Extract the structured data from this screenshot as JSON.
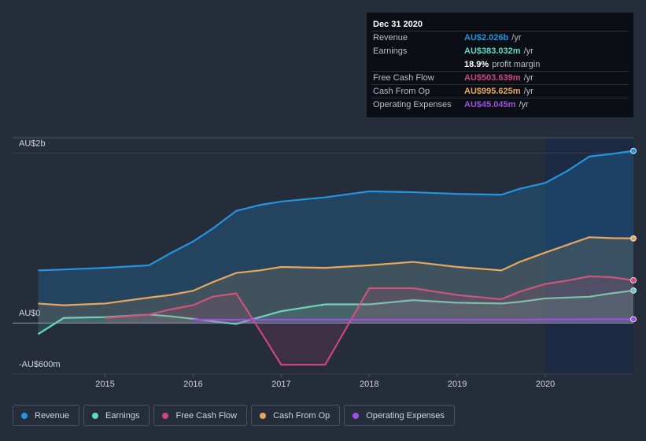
{
  "chart_data": {
    "type": "line",
    "x": [
      2014.24,
      2014.53,
      2015,
      2015.5,
      2015.74,
      2016,
      2016.22,
      2016.49,
      2016.76,
      2017,
      2017.5,
      2018,
      2018.5,
      2019,
      2019.5,
      2019.71,
      2020,
      2020.25,
      2020.5,
      2020.75,
      2021.0
    ],
    "series": [
      {
        "name": "Revenue",
        "color": "#2394df",
        "values": [
          0.62,
          0.63,
          0.65,
          0.68,
          0.82,
          0.96,
          1.11,
          1.32,
          1.39,
          1.43,
          1.48,
          1.55,
          1.54,
          1.52,
          1.51,
          1.58,
          1.65,
          1.79,
          1.96,
          1.99,
          2.026
        ]
      },
      {
        "name": "Earnings",
        "color": "#5fd9c3",
        "values": [
          -0.13,
          0.06,
          0.07,
          0.1,
          0.08,
          0.05,
          0.02,
          -0.01,
          0.07,
          0.14,
          0.22,
          0.22,
          0.27,
          0.24,
          0.23,
          0.25,
          0.29,
          0.3,
          0.31,
          0.35,
          0.383
        ]
      },
      {
        "name": "Free Cash Flow",
        "color": "#c9467f",
        "values": [
          null,
          null,
          0.06,
          0.1,
          0.16,
          0.21,
          0.31,
          0.35,
          -0.09,
          -0.49,
          -0.49,
          0.41,
          0.41,
          0.33,
          0.28,
          0.37,
          0.46,
          0.5,
          0.55,
          0.54,
          0.504
        ]
      },
      {
        "name": "Cash From Op",
        "color": "#e6a75c",
        "values": [
          0.23,
          0.21,
          0.23,
          0.3,
          0.33,
          0.38,
          0.48,
          0.59,
          0.62,
          0.66,
          0.65,
          0.68,
          0.72,
          0.66,
          0.62,
          0.72,
          0.83,
          0.92,
          1.01,
          1.0,
          0.996
        ]
      },
      {
        "name": "Operating Expenses",
        "color": "#9b51e0",
        "values": [
          null,
          null,
          null,
          null,
          null,
          0.04,
          0.04,
          0.04,
          0.04,
          0.04,
          0.04,
          0.04,
          0.04,
          0.04,
          0.04,
          0.04,
          0.042,
          0.043,
          0.044,
          0.045,
          0.045
        ]
      }
    ],
    "xlim": [
      2013.95,
      2021.0
    ],
    "xticks": [
      2015,
      2016,
      2017,
      2018,
      2019,
      2020
    ],
    "ylim": [
      -0.6,
      2.18
    ],
    "yticks": [
      {
        "value": 2,
        "label": "AU$2b"
      },
      {
        "value": 0,
        "label": "AU$0"
      },
      {
        "value": -0.6,
        "label": "-AU$600m"
      }
    ],
    "tooltip": {
      "title": "Dec 31 2020",
      "rows": [
        {
          "label": "Revenue",
          "value": "AU$2.026b",
          "unit": "/yr"
        },
        {
          "label": "Earnings",
          "value": "AU$383.032m",
          "unit": "/yr"
        },
        {
          "label": "",
          "value": "18.9%",
          "unit": "profit margin"
        },
        {
          "label": "Free Cash Flow",
          "value": "AU$503.639m",
          "unit": "/yr"
        },
        {
          "label": "Cash From Op",
          "value": "AU$995.625m",
          "unit": "/yr"
        },
        {
          "label": "Operating Expenses",
          "value": "AU$45.045m",
          "unit": "/yr"
        }
      ]
    }
  }
}
